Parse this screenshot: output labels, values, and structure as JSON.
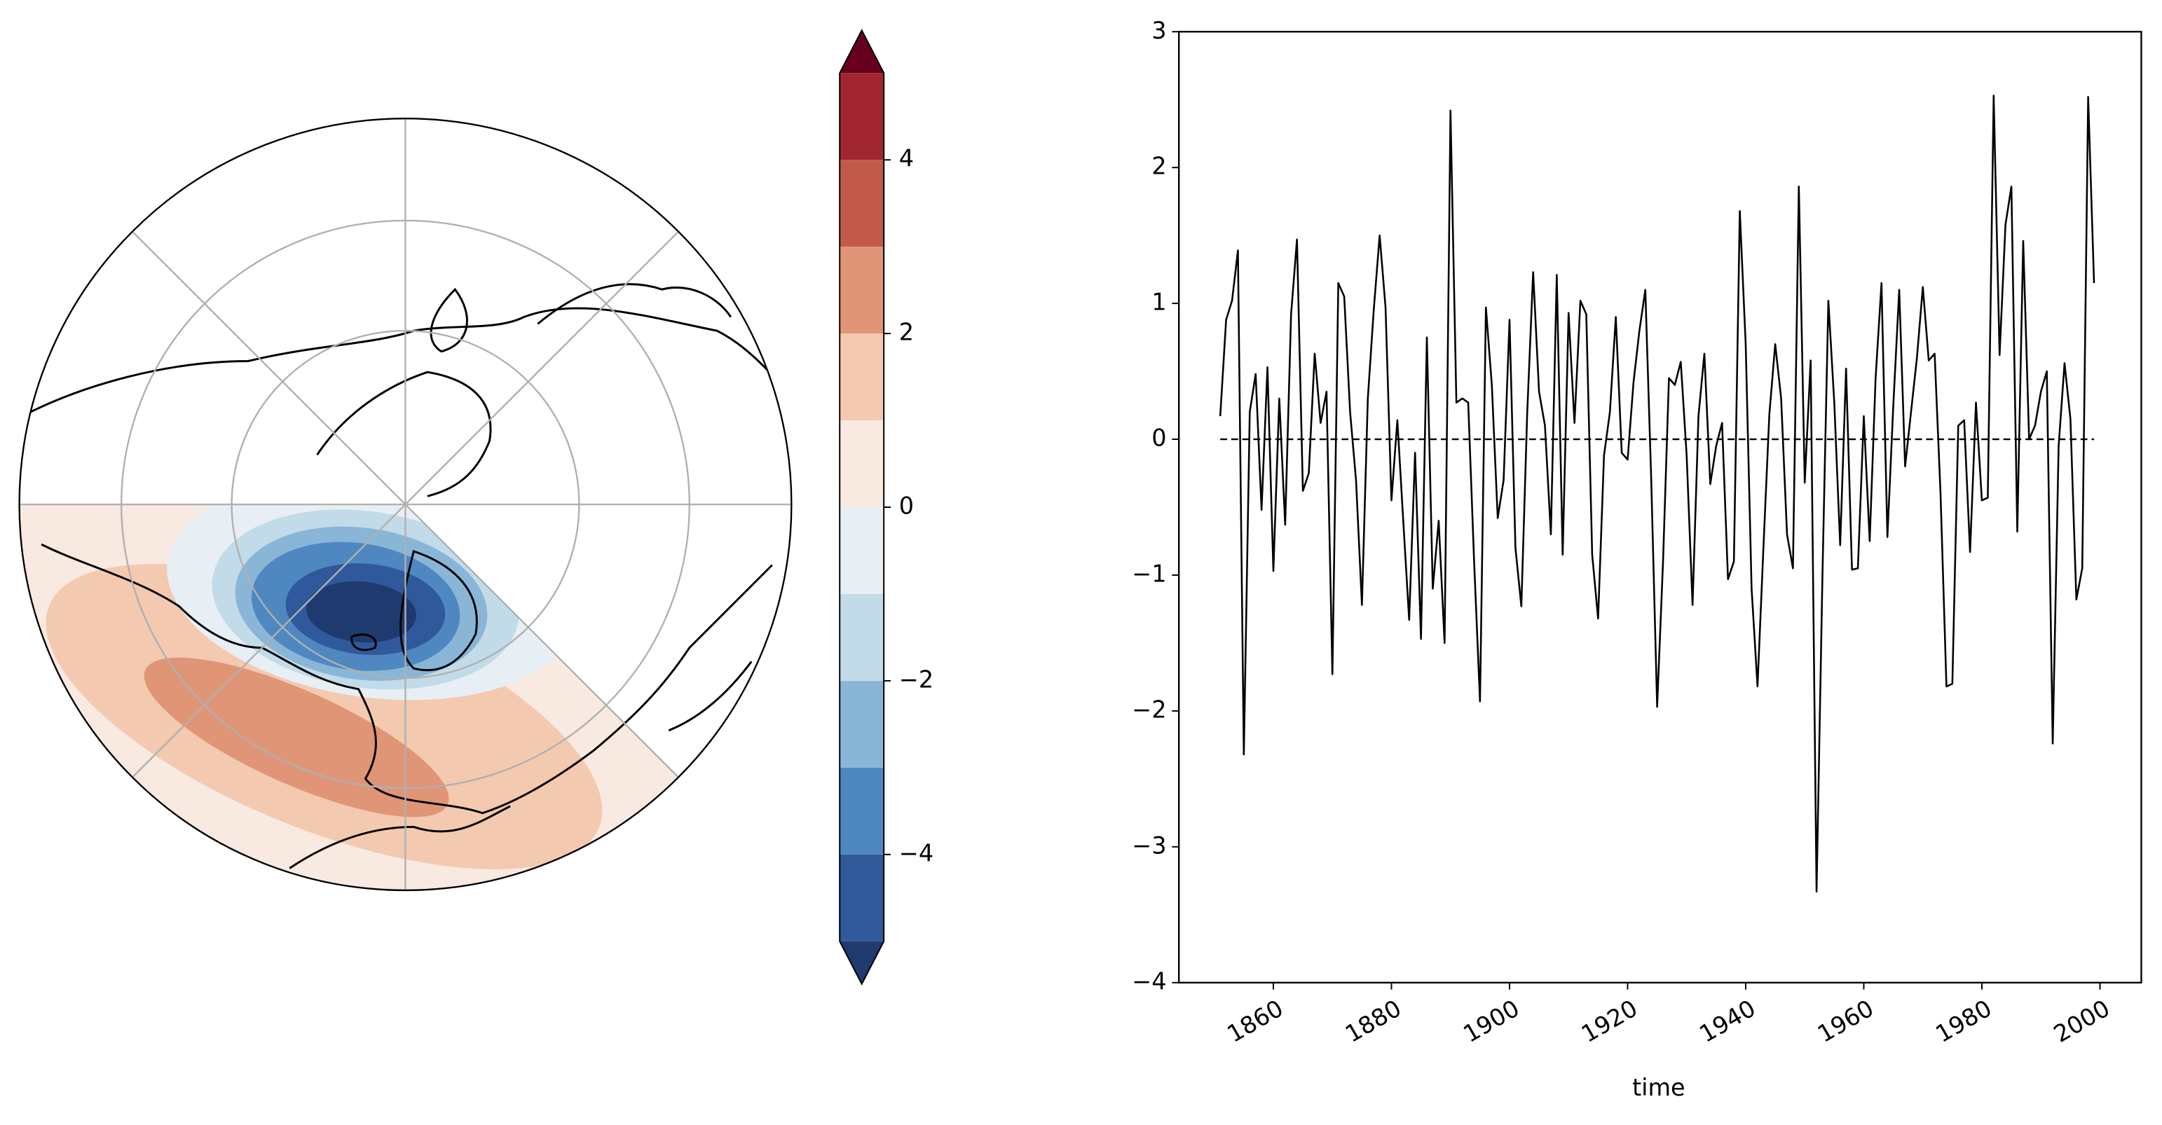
{
  "chart_data": [
    {
      "type": "contour-map",
      "projection": "north-polar-stereo",
      "colorbar": {
        "levels": [
          -5,
          -4,
          -3,
          -2,
          -1,
          0,
          1,
          2,
          3,
          4,
          5
        ],
        "colors": [
          "#30599b",
          "#4f88c0",
          "#89b6d6",
          "#c2dbe9",
          "#e7eff4",
          "#f8e9e1",
          "#f3c9b0",
          "#e09577",
          "#c25a4a",
          "#a1262f"
        ],
        "under_color": "#1f3a6e",
        "over_color": "#67001f",
        "ticks": [
          {
            "value": -4,
            "label": "−4"
          },
          {
            "value": -2,
            "label": "−2"
          },
          0,
          2,
          4
        ]
      }
    },
    {
      "type": "line",
      "xlabel": "time",
      "color": "#000000",
      "hline": 0,
      "x": [
        1851,
        1852,
        1853,
        1854,
        1855,
        1856,
        1857,
        1858,
        1859,
        1860,
        1861,
        1862,
        1863,
        1864,
        1865,
        1866,
        1867,
        1868,
        1869,
        1870,
        1871,
        1872,
        1873,
        1874,
        1875,
        1876,
        1877,
        1878,
        1879,
        1880,
        1881,
        1882,
        1883,
        1884,
        1885,
        1886,
        1887,
        1888,
        1889,
        1890,
        1891,
        1892,
        1893,
        1894,
        1895,
        1896,
        1897,
        1898,
        1899,
        1900,
        1901,
        1902,
        1903,
        1904,
        1905,
        1906,
        1907,
        1908,
        1909,
        1910,
        1911,
        1912,
        1913,
        1914,
        1915,
        1916,
        1917,
        1918,
        1919,
        1920,
        1921,
        1922,
        1923,
        1924,
        1925,
        1926,
        1927,
        1928,
        1929,
        1930,
        1931,
        1932,
        1933,
        1934,
        1935,
        1936,
        1937,
        1938,
        1939,
        1940,
        1941,
        1942,
        1943,
        1944,
        1945,
        1946,
        1947,
        1948,
        1949,
        1950,
        1951,
        1952,
        1953,
        1954,
        1955,
        1956,
        1957,
        1958,
        1959,
        1960,
        1961,
        1962,
        1963,
        1964,
        1965,
        1966,
        1967,
        1968,
        1969,
        1970,
        1971,
        1972,
        1973,
        1974,
        1975,
        1976,
        1977,
        1978,
        1979,
        1980,
        1981,
        1982,
        1983,
        1984,
        1985,
        1986,
        1987,
        1988,
        1989,
        1990,
        1991,
        1992,
        1993,
        1994,
        1995,
        1996,
        1997,
        1998,
        1999
      ],
      "values": [
        0.17,
        0.88,
        1.02,
        1.39,
        -2.32,
        0.2,
        0.48,
        -0.52,
        0.53,
        -0.97,
        0.3,
        -0.63,
        0.92,
        1.47,
        -0.38,
        -0.25,
        0.63,
        0.12,
        0.35,
        -1.73,
        1.15,
        1.05,
        0.2,
        -0.3,
        -1.22,
        0.3,
        0.95,
        1.5,
        0.97,
        -0.45,
        0.14,
        -0.6,
        -1.33,
        -0.1,
        -1.47,
        0.75,
        -1.1,
        -0.6,
        -1.5,
        2.42,
        0.27,
        0.3,
        0.27,
        -0.9,
        -1.93,
        0.97,
        0.4,
        -0.58,
        -0.3,
        0.88,
        -0.8,
        -1.23,
        0.2,
        1.23,
        0.35,
        0.1,
        -0.7,
        1.21,
        -0.85,
        0.93,
        0.12,
        1.02,
        0.92,
        -0.85,
        -1.32,
        -0.12,
        0.2,
        0.9,
        -0.1,
        -0.15,
        0.42,
        0.8,
        1.1,
        -0.3,
        -1.97,
        -0.9,
        0.45,
        0.4,
        0.57,
        -0.12,
        -1.22,
        0.17,
        0.63,
        -0.33,
        -0.05,
        0.12,
        -1.03,
        -0.9,
        1.68,
        0.7,
        -1.1,
        -1.82,
        -0.8,
        0.18,
        0.7,
        0.3,
        -0.7,
        -0.95,
        1.86,
        -0.32,
        0.58,
        -3.33,
        -1.0,
        1.02,
        0.27,
        -0.78,
        0.52,
        -0.96,
        -0.95,
        0.17,
        -0.75,
        0.45,
        1.15,
        -0.72,
        0.25,
        1.1,
        -0.2,
        0.2,
        0.6,
        1.12,
        0.58,
        0.63,
        -0.4,
        -1.82,
        -1.8,
        0.1,
        0.14,
        -0.83,
        0.27,
        -0.45,
        -0.43,
        2.53,
        0.62,
        1.58,
        1.86,
        -0.68,
        1.46,
        0.0,
        0.1,
        0.35,
        0.5,
        -2.24,
        -0.05,
        0.56,
        0.15,
        -1.18,
        -0.95,
        2.52,
        1.15
      ],
      "xlim": [
        1844,
        2007
      ],
      "xticks": [
        1860,
        1880,
        1900,
        1920,
        1940,
        1960,
        1980,
        2000
      ],
      "ylim": [
        -4,
        3
      ],
      "yticks": [
        {
          "value": -4,
          "label": "−4"
        },
        {
          "value": -3,
          "label": "−3"
        },
        {
          "value": -2,
          "label": "−2"
        },
        {
          "value": -1,
          "label": "−1"
        },
        0,
        1,
        2,
        3
      ]
    }
  ]
}
